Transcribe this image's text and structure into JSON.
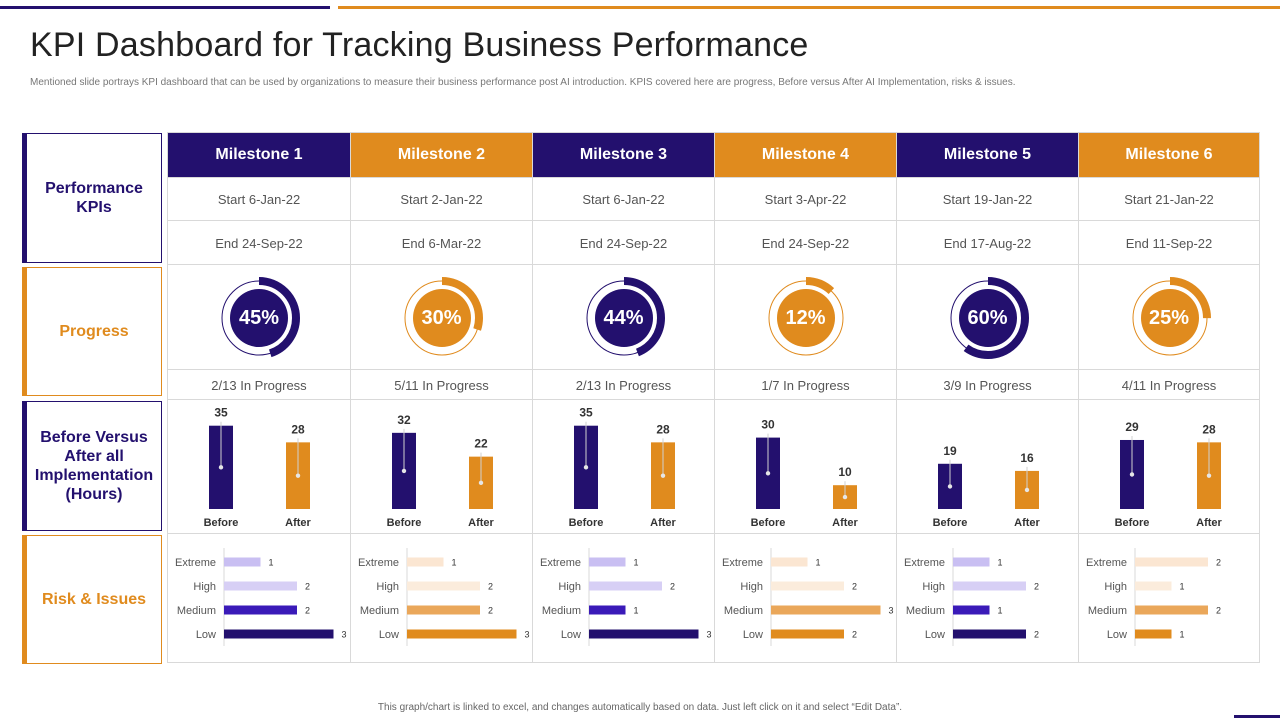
{
  "title": "KPI Dashboard for Tracking Business Performance",
  "subtitle": "Mentioned slide portrays KPI dashboard that can be used by organizations to measure their business performance post AI introduction. KPIS  covered here are progress, Before versus After AI Implementation,  risks & issues.",
  "footer": "This graph/chart is linked to excel, and changes automatically based on data. Just left click on it and select “Edit Data”.",
  "colors": {
    "accent_dark": "#23106e",
    "accent_orange": "#e08b1e",
    "risk_dark": [
      "#c9bff2",
      "#d7cff5",
      "#3a1ab8",
      "#23106e"
    ],
    "risk_orange": [
      "#fbe6d2",
      "#fbecdc",
      "#eaa75a",
      "#e08b1e"
    ]
  },
  "row_labels": {
    "performance": "Performance KPIs",
    "progress": "Progress",
    "before_after": "Before Versus After all Implementation (Hours)",
    "risk": "Risk & Issues"
  },
  "milestones": [
    {
      "name": "Milestone 1",
      "theme": "dark",
      "start": "Start   6-Jan-22",
      "end": "End   24-Sep-22",
      "progress_label": "45%",
      "progress": 45,
      "status": "2/13 In Progress"
    },
    {
      "name": "Milestone 2",
      "theme": "orange",
      "start": "Start   2-Jan-22",
      "end": "End   6-Mar-22",
      "progress_label": "30%",
      "progress": 30,
      "status": "5/11 In Progress"
    },
    {
      "name": "Milestone 3",
      "theme": "dark",
      "start": "Start   6-Jan-22",
      "end": "End   24-Sep-22",
      "progress_label": "44%",
      "progress": 44,
      "status": "2/13 In Progress"
    },
    {
      "name": "Milestone 4",
      "theme": "orange",
      "start": "Start   3-Apr-22",
      "end": "End   24-Sep-22",
      "progress_label": "12%",
      "progress": 12,
      "status": "1/7 In Progress"
    },
    {
      "name": "Milestone 5",
      "theme": "dark",
      "start": "Start   19-Jan-22",
      "end": "End   17-Aug-22",
      "progress_label": "60%",
      "progress": 60,
      "status": "3/9 In Progress"
    },
    {
      "name": "Milestone 6",
      "theme": "orange",
      "start": "Start   21-Jan-22",
      "end": "End   11-Sep-22",
      "progress_label": "25%",
      "progress": 25,
      "status": "4/11 In Progress"
    }
  ],
  "chart_data": [
    {
      "type": "bar",
      "title": "Before Versus After all Implementation (Hours)",
      "categories": [
        "Before",
        "After"
      ],
      "series": [
        {
          "name": "Milestone 1",
          "values": [
            35,
            28
          ]
        },
        {
          "name": "Milestone 2",
          "values": [
            32,
            22
          ]
        },
        {
          "name": "Milestone 3",
          "values": [
            35,
            28
          ]
        },
        {
          "name": "Milestone 4",
          "values": [
            30,
            10
          ]
        },
        {
          "name": "Milestone 5",
          "values": [
            19,
            16
          ]
        },
        {
          "name": "Milestone 6",
          "values": [
            29,
            28
          ]
        }
      ]
    },
    {
      "type": "bar",
      "title": "Risk & Issues",
      "orientation": "horizontal",
      "categories": [
        "Extreme",
        "High",
        "Medium",
        "Low"
      ],
      "series": [
        {
          "name": "Milestone 1",
          "values": [
            1,
            2,
            2,
            3
          ]
        },
        {
          "name": "Milestone 2",
          "values": [
            1,
            2,
            2,
            3
          ]
        },
        {
          "name": "Milestone 3",
          "values": [
            1,
            2,
            1,
            3
          ]
        },
        {
          "name": "Milestone 4",
          "values": [
            1,
            2,
            3,
            2
          ]
        },
        {
          "name": "Milestone 5",
          "values": [
            1,
            2,
            1,
            2
          ]
        },
        {
          "name": "Milestone 6",
          "values": [
            2,
            1,
            2,
            1
          ]
        }
      ]
    }
  ]
}
